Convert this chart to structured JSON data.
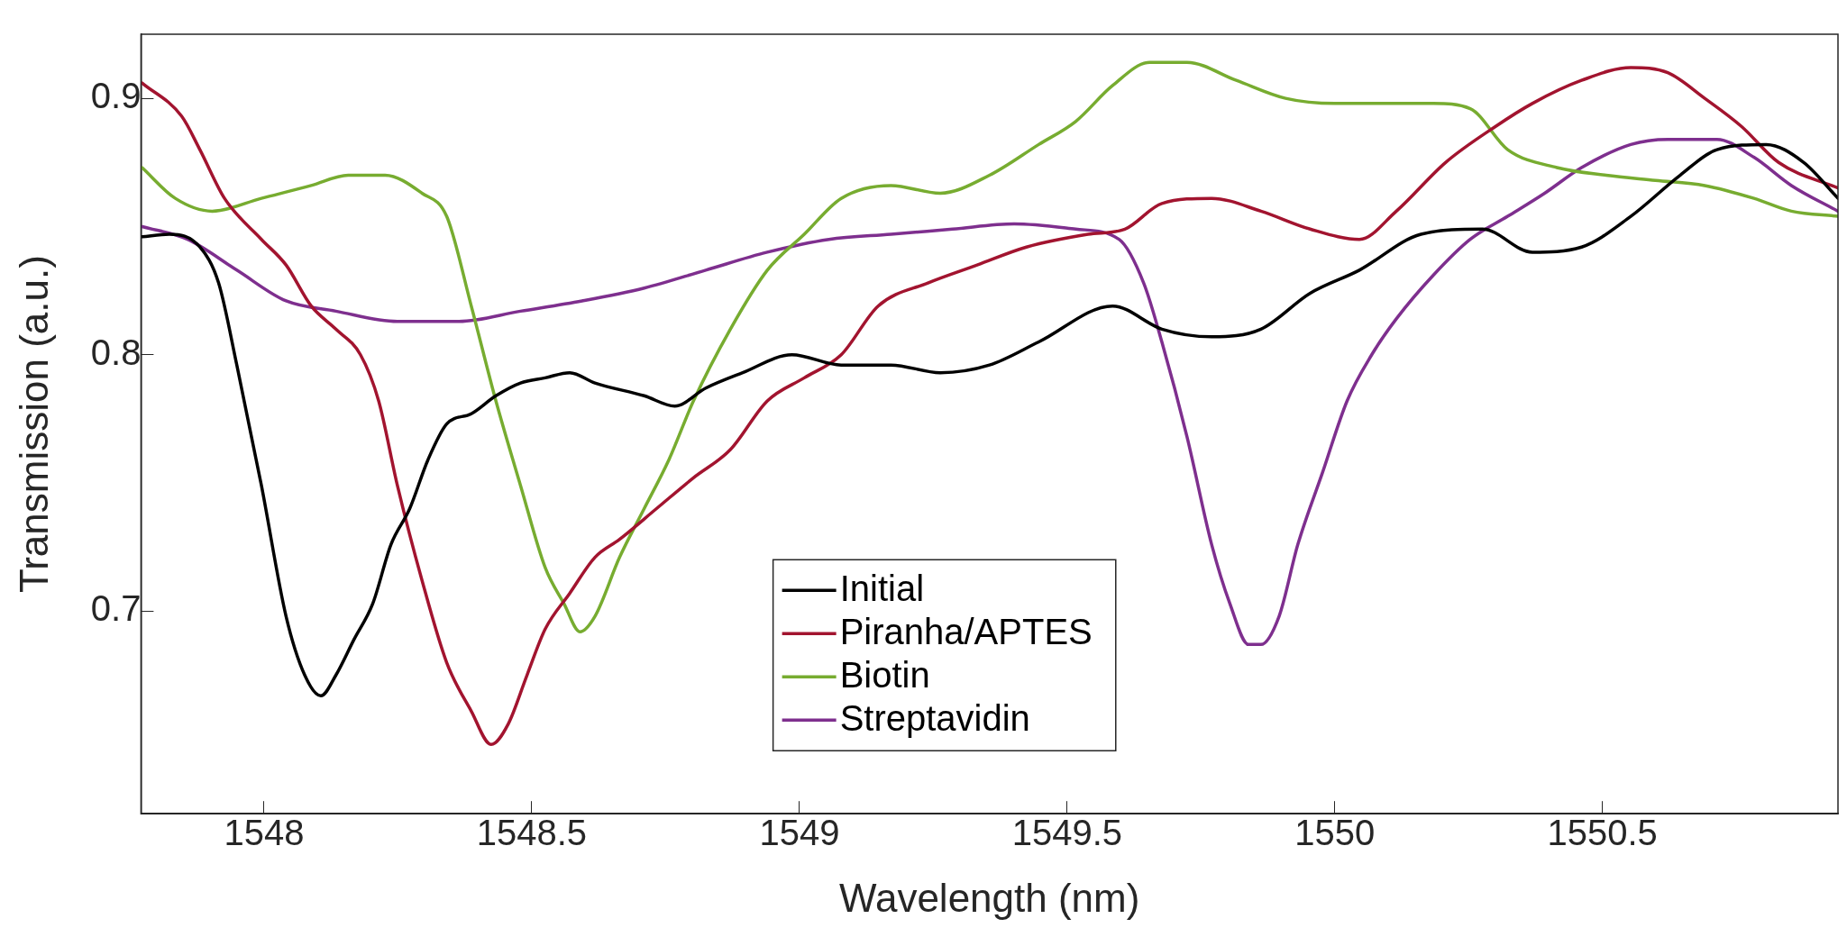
{
  "chart_data": {
    "type": "line",
    "xlabel": "Wavelength (nm)",
    "ylabel": "Transmission (a.u.)",
    "xlim": [
      1547.77,
      1550.94
    ],
    "ylim": [
      0.621,
      0.925
    ],
    "xticks": [
      1548,
      1548.5,
      1549,
      1549.5,
      1550,
      1550.5
    ],
    "yticks": [
      0.7,
      0.8,
      0.9
    ],
    "grid": false,
    "legend": "bottom",
    "marker": "none",
    "line_style": "solid",
    "series": [
      {
        "name": "Initial",
        "color": "#000000",
        "x": [
          1547.772,
          1547.823,
          1547.88,
          1547.915,
          1547.949,
          1547.995,
          1548.041,
          1548.076,
          1548.106,
          1548.134,
          1548.168,
          1548.203,
          1548.237,
          1548.272,
          1548.306,
          1548.341,
          1548.387,
          1548.433,
          1548.479,
          1548.525,
          1548.571,
          1548.618,
          1548.71,
          1548.767,
          1548.825,
          1548.894,
          1548.986,
          1549.078,
          1549.171,
          1549.263,
          1549.355,
          1549.447,
          1549.585,
          1549.677,
          1549.77,
          1549.862,
          1549.954,
          1550.046,
          1550.161,
          1550.276,
          1550.369,
          1550.461,
          1550.553,
          1550.645,
          1550.714,
          1550.806,
          1550.876,
          1550.94
        ],
        "values": [
          0.846,
          0.847,
          0.842,
          0.828,
          0.796,
          0.749,
          0.698,
          0.675,
          0.667,
          0.675,
          0.689,
          0.703,
          0.726,
          0.74,
          0.759,
          0.773,
          0.777,
          0.784,
          0.789,
          0.791,
          0.793,
          0.789,
          0.784,
          0.78,
          0.787,
          0.793,
          0.8,
          0.796,
          0.796,
          0.793,
          0.796,
          0.805,
          0.819,
          0.81,
          0.807,
          0.81,
          0.824,
          0.833,
          0.847,
          0.849,
          0.84,
          0.842,
          0.854,
          0.87,
          0.88,
          0.882,
          0.875,
          0.861
        ]
      },
      {
        "name": "Piranha/APTES",
        "color": "#a2142f",
        "x": [
          1547.772,
          1547.846,
          1547.88,
          1547.926,
          1547.995,
          1548.041,
          1548.088,
          1548.134,
          1548.18,
          1548.214,
          1548.249,
          1548.295,
          1548.341,
          1548.387,
          1548.424,
          1548.456,
          1548.491,
          1548.525,
          1548.571,
          1548.618,
          1548.664,
          1548.733,
          1548.802,
          1548.871,
          1548.94,
          1549.009,
          1549.078,
          1549.147,
          1549.24,
          1549.332,
          1549.424,
          1549.539,
          1549.608,
          1549.677,
          1549.77,
          1549.862,
          1549.954,
          1550.046,
          1550.115,
          1550.207,
          1550.3,
          1550.369,
          1550.461,
          1550.553,
          1550.622,
          1550.691,
          1550.76,
          1550.829,
          1550.94
        ],
        "values": [
          0.906,
          0.893,
          0.88,
          0.861,
          0.845,
          0.835,
          0.819,
          0.81,
          0.8,
          0.782,
          0.749,
          0.712,
          0.68,
          0.661,
          0.648,
          0.656,
          0.675,
          0.693,
          0.707,
          0.721,
          0.728,
          0.74,
          0.752,
          0.763,
          0.782,
          0.791,
          0.8,
          0.819,
          0.828,
          0.835,
          0.842,
          0.847,
          0.849,
          0.859,
          0.861,
          0.856,
          0.849,
          0.845,
          0.856,
          0.875,
          0.889,
          0.898,
          0.907,
          0.912,
          0.91,
          0.9,
          0.889,
          0.875,
          0.865
        ]
      },
      {
        "name": "Biotin",
        "color": "#77ac30",
        "x": [
          1547.772,
          1547.834,
          1547.903,
          1547.995,
          1548.088,
          1548.157,
          1548.226,
          1548.295,
          1548.341,
          1548.387,
          1548.433,
          1548.479,
          1548.525,
          1548.56,
          1548.59,
          1548.618,
          1548.664,
          1548.71,
          1548.756,
          1548.802,
          1548.871,
          1548.94,
          1549.009,
          1549.078,
          1549.171,
          1549.263,
          1549.355,
          1549.447,
          1549.516,
          1549.585,
          1549.654,
          1549.724,
          1549.816,
          1549.908,
          1550,
          1550.092,
          1550.184,
          1550.253,
          1550.323,
          1550.415,
          1550.507,
          1550.599,
          1550.691,
          1550.783,
          1550.853,
          1550.94
        ],
        "values": [
          0.873,
          0.861,
          0.856,
          0.861,
          0.866,
          0.87,
          0.87,
          0.863,
          0.854,
          0.819,
          0.782,
          0.749,
          0.717,
          0.703,
          0.692,
          0.698,
          0.721,
          0.74,
          0.759,
          0.782,
          0.81,
          0.833,
          0.847,
          0.861,
          0.866,
          0.863,
          0.87,
          0.882,
          0.891,
          0.905,
          0.914,
          0.914,
          0.907,
          0.9,
          0.898,
          0.898,
          0.898,
          0.896,
          0.88,
          0.873,
          0.87,
          0.868,
          0.866,
          0.861,
          0.856,
          0.854
        ]
      },
      {
        "name": "Streptavidin",
        "color": "#7e2f8e",
        "x": [
          1547.772,
          1547.857,
          1547.949,
          1548.041,
          1548.134,
          1548.249,
          1548.364,
          1548.479,
          1548.594,
          1548.71,
          1548.825,
          1548.94,
          1549.055,
          1549.171,
          1549.286,
          1549.401,
          1549.516,
          1549.597,
          1549.643,
          1549.677,
          1549.724,
          1549.77,
          1549.804,
          1549.839,
          1549.862,
          1549.896,
          1549.931,
          1549.977,
          1550.023,
          1550.069,
          1550.115,
          1550.184,
          1550.253,
          1550.323,
          1550.392,
          1550.461,
          1550.553,
          1550.622,
          1550.714,
          1550.783,
          1550.853,
          1550.94
        ],
        "values": [
          0.85,
          0.845,
          0.833,
          0.821,
          0.817,
          0.813,
          0.813,
          0.817,
          0.821,
          0.826,
          0.833,
          0.84,
          0.845,
          0.847,
          0.849,
          0.851,
          0.849,
          0.845,
          0.828,
          0.805,
          0.768,
          0.726,
          0.703,
          0.687,
          0.687,
          0.698,
          0.726,
          0.754,
          0.782,
          0.8,
          0.814,
          0.831,
          0.845,
          0.854,
          0.863,
          0.873,
          0.882,
          0.884,
          0.884,
          0.877,
          0.866,
          0.856
        ]
      }
    ]
  }
}
